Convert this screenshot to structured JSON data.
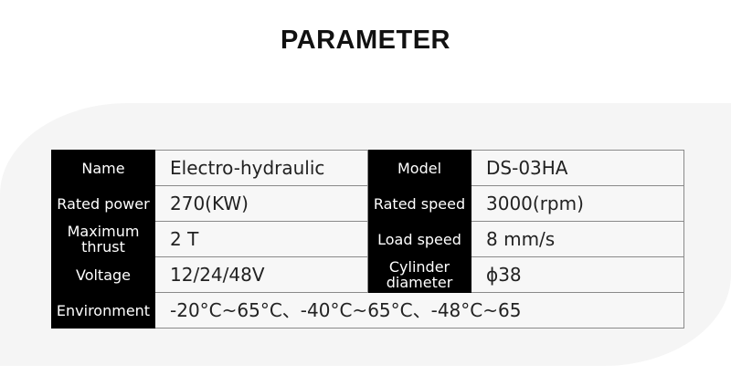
{
  "title": "PARAMETER",
  "rows": [
    {
      "k1": "Name",
      "v1": "Electro-hydraulic",
      "k2": "Model",
      "v2": "DS-03HA"
    },
    {
      "k1": "Rated power",
      "v1": "270(KW)",
      "k2": "Rated speed",
      "v2": "3000(rpm)"
    },
    {
      "k1": "Maximum thrust",
      "v1": "2 T",
      "k2": "Load speed",
      "v2": "8 mm/s"
    },
    {
      "k1": "Voltage",
      "v1": "12/24/48V",
      "k2": "Cylinder diameter",
      "v2": "ϕ38"
    }
  ],
  "environment": {
    "label": "Environment",
    "value": "-20°C~65°C、-40°C~65°C、-48°C~65"
  }
}
